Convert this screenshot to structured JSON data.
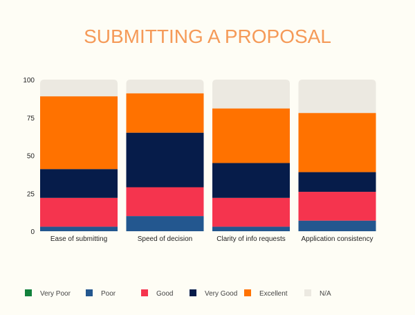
{
  "chart_data": {
    "type": "bar",
    "stacked": true,
    "title": "SUBMITTING A PROPOSAL",
    "categories": [
      "Ease of submitting",
      "Speed of decision",
      "Clarity of info requests",
      "Application consistency"
    ],
    "series": [
      {
        "name": "Very Poor",
        "color": "#12813b",
        "values": [
          0,
          0,
          0,
          0
        ]
      },
      {
        "name": "Poor",
        "color": "#23578f",
        "values": [
          3,
          10,
          3,
          7
        ]
      },
      {
        "name": "Good",
        "color": "#f5344e",
        "values": [
          19,
          19,
          19,
          19
        ]
      },
      {
        "name": "Very Good",
        "color": "#061c4a",
        "values": [
          19,
          36,
          23,
          13
        ]
      },
      {
        "name": "Excellent",
        "color": "#ff7200",
        "values": [
          48,
          26,
          36,
          39
        ]
      },
      {
        "name": "N/A",
        "color": "#ece9e1",
        "values": [
          11,
          9,
          19,
          22
        ]
      }
    ],
    "yticks": [
      0,
      25,
      50,
      75,
      100
    ],
    "ylim": [
      0,
      100
    ],
    "xlabel": "",
    "ylabel": "",
    "grid": false,
    "legend": "bottom",
    "title_color": "#f59a58"
  }
}
